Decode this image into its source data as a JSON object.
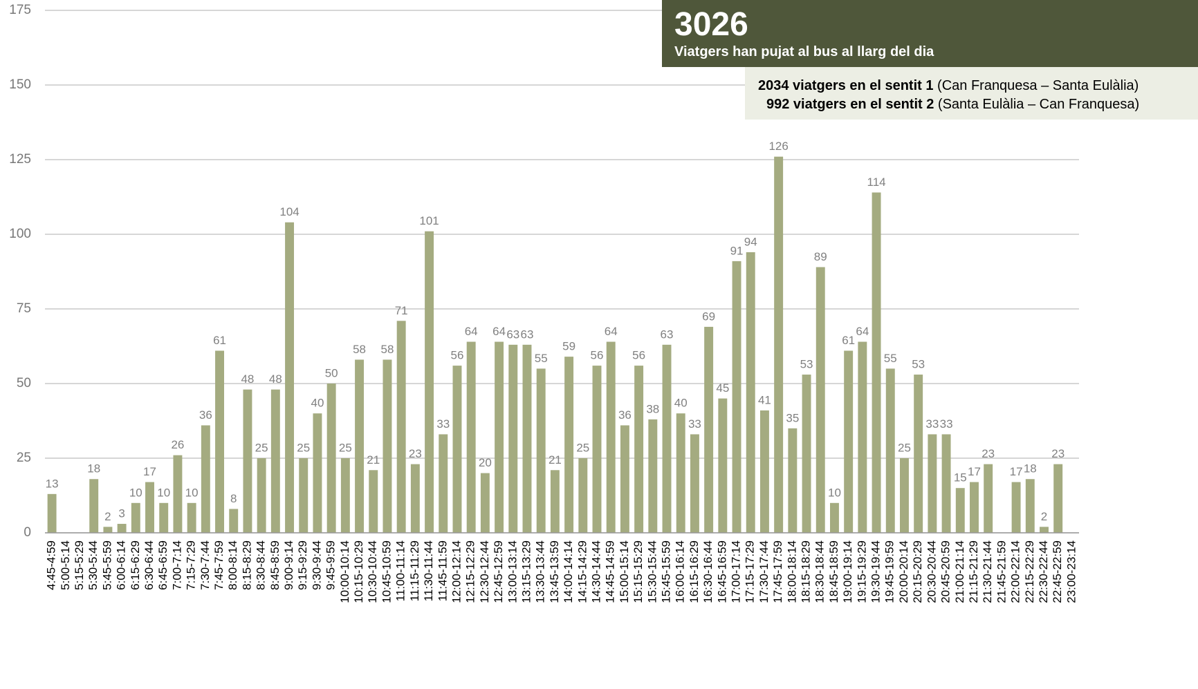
{
  "chart_data": {
    "type": "bar",
    "categories": [
      "4:45-4:59",
      "5:00-5:14",
      "5:15-5:29",
      "5:30-5:44",
      "5:45-5:59",
      "6:00-6:14",
      "6:15-6:29",
      "6:30-6:44",
      "6:45-6:59",
      "7:00-7:14",
      "7:15-7:29",
      "7:30-7:44",
      "7:45-7:59",
      "8:00-8:14",
      "8:15-8:29",
      "8:30-8:44",
      "8:45-8:59",
      "9:00-9:14",
      "9:15-9:29",
      "9:30-9:44",
      "9:45-9:59",
      "10:00-10:14",
      "10:15-10:29",
      "10:30-10:44",
      "10:45-10:59",
      "11:00-11:14",
      "11:15-11:29",
      "11:30-11:44",
      "11:45-11:59",
      "12:00-12:14",
      "12:15-12:29",
      "12:30-12:44",
      "12:45-12:59",
      "13:00-13:14",
      "13:15-13:29",
      "13:30-13:44",
      "13:45-13:59",
      "14:00-14:14",
      "14:15-14:29",
      "14:30-14:44",
      "14:45-14:59",
      "15:00-15:14",
      "15:15-15:29",
      "15:30-15:44",
      "15:45-15:59",
      "16:00-16:14",
      "16:15-16:29",
      "16:30-16:44",
      "16:45-16:59",
      "17:00-17:14",
      "17:15-17:29",
      "17:30-17:44",
      "17:45-17:59",
      "18:00-18:14",
      "18:15-18:29",
      "18:30-18:44",
      "18:45-18:59",
      "19:00-19:14",
      "19:15-19:29",
      "19:30-19:44",
      "19:45-19:59",
      "20:00-20:14",
      "20:15-20:29",
      "20:30-20:44",
      "20:45-20:59",
      "21:00-21:14",
      "21:15-21:29",
      "21:30-21:44",
      "21:45-21:59",
      "22:00-22:14",
      "22:15-22:29",
      "22:30-22:44",
      "22:45-22:59",
      "23:00-23:14"
    ],
    "values": [
      13,
      null,
      null,
      18,
      2,
      3,
      10,
      17,
      10,
      26,
      10,
      36,
      61,
      8,
      48,
      25,
      48,
      104,
      25,
      40,
      50,
      25,
      58,
      21,
      58,
      71,
      23,
      101,
      33,
      56,
      64,
      20,
      64,
      63,
      63,
      55,
      21,
      59,
      25,
      56,
      64,
      36,
      56,
      38,
      63,
      40,
      33,
      69,
      45,
      91,
      94,
      41,
      126,
      35,
      53,
      89,
      10,
      61,
      64,
      114,
      55,
      25,
      53,
      33,
      33,
      15,
      17,
      23,
      null,
      17,
      18,
      2,
      23,
      null
    ],
    "color": "#a4ab80",
    "ylim": [
      0,
      175
    ],
    "yticks": [
      0,
      25,
      50,
      75,
      100,
      125,
      150,
      175
    ],
    "grid": true
  },
  "summary": {
    "total": "3026",
    "subtitle": "Viatgers han pujat al bus al llarg del dia",
    "lines": [
      {
        "bold": "2034 viatgers en el sentit 1",
        "rest": "(Can Franquesa – Santa Eulàlia)"
      },
      {
        "bold": "992 viatgers en el sentit 2",
        "rest": "(Santa Eulàlia – Can Franquesa)"
      }
    ]
  }
}
